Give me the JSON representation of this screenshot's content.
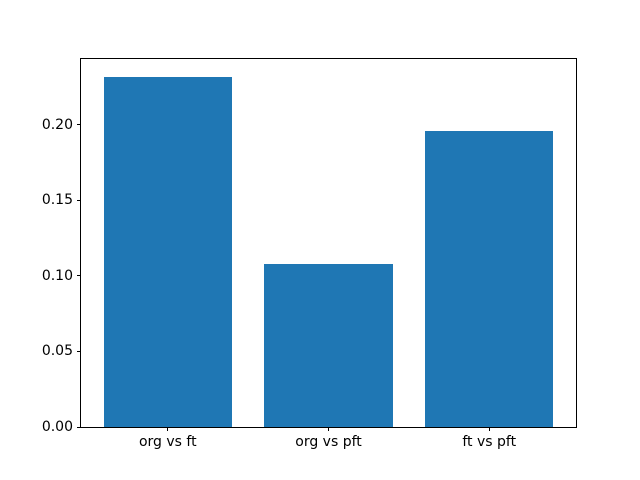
{
  "figure": {
    "background": "#ffffff"
  },
  "chart_data": {
    "type": "bar",
    "categories": [
      "org vs ft",
      "org vs pft",
      "ft vs pft"
    ],
    "values": [
      0.232,
      0.108,
      0.196
    ],
    "yticks": [
      "0.00",
      "0.05",
      "0.10",
      "0.15",
      "0.20"
    ],
    "ylim": [
      0,
      0.2436
    ],
    "xlim": [
      -0.54,
      2.54
    ],
    "bar_width": 0.8,
    "bar_color": "#1f77b4",
    "axis_color": "#000000",
    "text_color": "#000000",
    "grid": false,
    "legend": null,
    "title": "",
    "xlabel": "",
    "ylabel": ""
  }
}
